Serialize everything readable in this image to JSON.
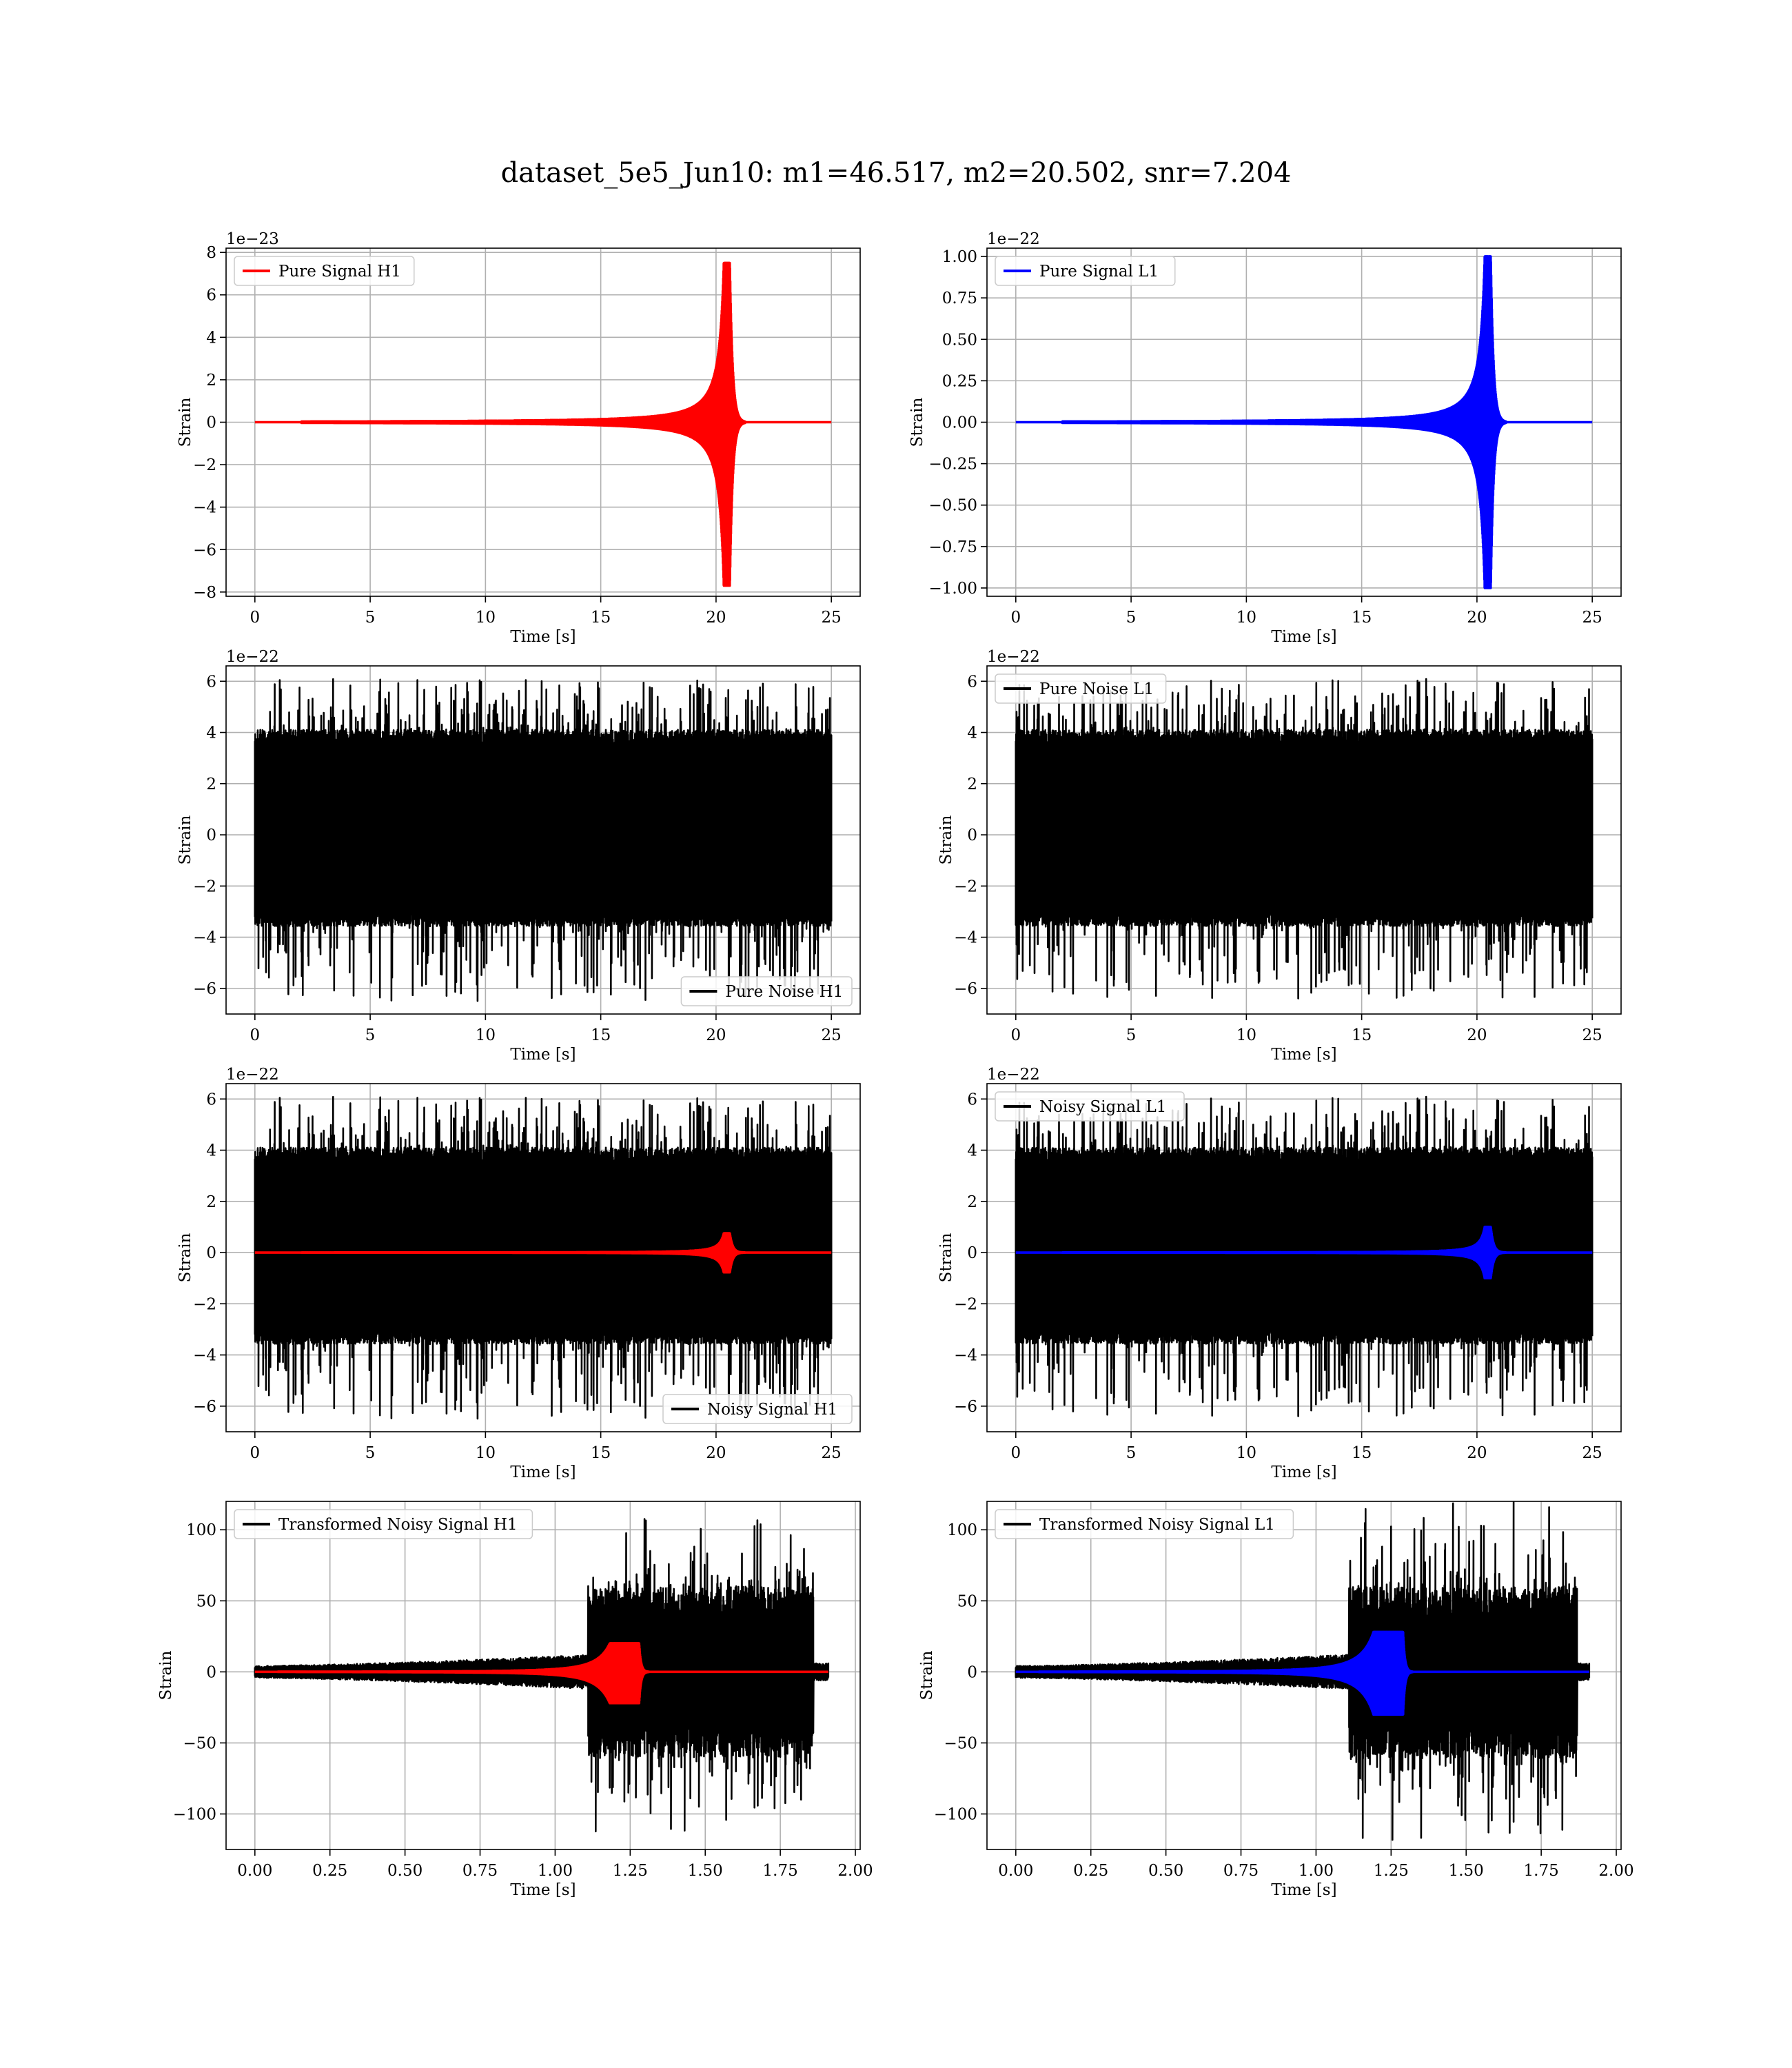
{
  "figure": {
    "title": "dataset_5e5_Jun10: m1=46.517, m2=20.502, snr=7.204"
  },
  "colors": {
    "h1_signal": "#ff0000",
    "l1_signal": "#0000ff",
    "noise": "#000000",
    "grid": "#b0b0b0"
  },
  "chart_data": [
    {
      "id": "pure_signal_h1",
      "type": "line",
      "legend": [
        "Pure Signal H1"
      ],
      "legend_colors": [
        "#ff0000"
      ],
      "legend_loc": "upper-left",
      "xlabel": "Time [s]",
      "ylabel": "Strain",
      "offset_text": "1e−23",
      "xlim": [
        -1.25,
        26.25
      ],
      "ylim": [
        -8.2,
        8.2
      ],
      "xticks": [
        0,
        5,
        10,
        15,
        20,
        25
      ],
      "xtick_labels": [
        "0",
        "5",
        "10",
        "15",
        "20",
        "25"
      ],
      "yticks": [
        -8,
        -6,
        -4,
        -2,
        0,
        2,
        4,
        6,
        8
      ],
      "ytick_labels": [
        "−8",
        "−6",
        "−4",
        "−2",
        "0",
        "2",
        "4",
        "6",
        "8"
      ],
      "grid": true,
      "series": [
        {
          "kind": "chirp",
          "color": "#ff0000",
          "t_start": 0,
          "t_end": 25,
          "t_merge": 20.6,
          "peak_pos": 7.5,
          "peak_neg": -7.7,
          "ringdown": 0.12,
          "exponent": 1.3
        }
      ]
    },
    {
      "id": "pure_signal_l1",
      "type": "line",
      "legend": [
        "Pure Signal L1"
      ],
      "legend_colors": [
        "#0000ff"
      ],
      "legend_loc": "upper-left",
      "xlabel": "Time [s]",
      "ylabel": "Strain",
      "offset_text": "1e−22",
      "xlim": [
        -1.25,
        26.25
      ],
      "ylim": [
        -1.05,
        1.05
      ],
      "xticks": [
        0,
        5,
        10,
        15,
        20,
        25
      ],
      "xtick_labels": [
        "0",
        "5",
        "10",
        "15",
        "20",
        "25"
      ],
      "yticks": [
        -1.0,
        -0.75,
        -0.5,
        -0.25,
        0,
        0.25,
        0.5,
        0.75,
        1.0
      ],
      "ytick_labels": [
        "−1.00",
        "−0.75",
        "−0.50",
        "−0.25",
        "0.00",
        "0.25",
        "0.50",
        "0.75",
        "1.00"
      ],
      "grid": true,
      "series": [
        {
          "kind": "chirp",
          "color": "#0000ff",
          "t_start": 0,
          "t_end": 25,
          "t_merge": 20.6,
          "peak_pos": 1.0,
          "peak_neg": -1.0,
          "ringdown": 0.12,
          "exponent": 1.3
        }
      ]
    },
    {
      "id": "pure_noise_h1",
      "type": "line",
      "legend": [
        "Pure Noise H1"
      ],
      "legend_colors": [
        "#000000"
      ],
      "legend_loc": "lower-right",
      "xlabel": "Time [s]",
      "ylabel": "Strain",
      "offset_text": "1e−22",
      "xlim": [
        -1.25,
        26.25
      ],
      "ylim": [
        -7.0,
        6.6
      ],
      "xticks": [
        0,
        5,
        10,
        15,
        20,
        25
      ],
      "xtick_labels": [
        "0",
        "5",
        "10",
        "15",
        "20",
        "25"
      ],
      "yticks": [
        -6,
        -4,
        -2,
        0,
        2,
        4,
        6
      ],
      "ytick_labels": [
        "−6",
        "−4",
        "−2",
        "0",
        "2",
        "4",
        "6"
      ],
      "grid": true,
      "series": [
        {
          "kind": "noise",
          "color": "#000000",
          "t_start": 0,
          "t_end": 25,
          "core_pos": 3.8,
          "core_neg": -3.3,
          "max": 6.1,
          "min": -6.5,
          "seed": 11
        }
      ]
    },
    {
      "id": "pure_noise_l1",
      "type": "line",
      "legend": [
        "Pure Noise L1"
      ],
      "legend_colors": [
        "#000000"
      ],
      "legend_loc": "upper-left",
      "xlabel": "Time [s]",
      "ylabel": "Strain",
      "offset_text": "1e−22",
      "xlim": [
        -1.25,
        26.25
      ],
      "ylim": [
        -7.0,
        6.6
      ],
      "xticks": [
        0,
        5,
        10,
        15,
        20,
        25
      ],
      "xtick_labels": [
        "0",
        "5",
        "10",
        "15",
        "20",
        "25"
      ],
      "yticks": [
        -6,
        -4,
        -2,
        0,
        2,
        4,
        6
      ],
      "ytick_labels": [
        "−6",
        "−4",
        "−2",
        "0",
        "2",
        "4",
        "6"
      ],
      "grid": true,
      "series": [
        {
          "kind": "noise",
          "color": "#000000",
          "t_start": 0,
          "t_end": 25,
          "core_pos": 3.8,
          "core_neg": -3.3,
          "max": 6.1,
          "min": -6.4,
          "seed": 29
        }
      ]
    },
    {
      "id": "noisy_signal_h1",
      "type": "line",
      "legend": [
        "Noisy Signal H1"
      ],
      "legend_colors": [
        "#000000"
      ],
      "legend_loc": "lower-right",
      "xlabel": "Time [s]",
      "ylabel": "Strain",
      "offset_text": "1e−22",
      "xlim": [
        -1.25,
        26.25
      ],
      "ylim": [
        -7.0,
        6.6
      ],
      "xticks": [
        0,
        5,
        10,
        15,
        20,
        25
      ],
      "xtick_labels": [
        "0",
        "5",
        "10",
        "15",
        "20",
        "25"
      ],
      "yticks": [
        -6,
        -4,
        -2,
        0,
        2,
        4,
        6
      ],
      "ytick_labels": [
        "−6",
        "−4",
        "−2",
        "0",
        "2",
        "4",
        "6"
      ],
      "grid": true,
      "series": [
        {
          "kind": "noise",
          "color": "#000000",
          "t_start": 0,
          "t_end": 25,
          "core_pos": 3.8,
          "core_neg": -3.3,
          "max": 6.1,
          "min": -6.5,
          "seed": 11
        },
        {
          "kind": "chirp",
          "color": "#ff0000",
          "t_start": 0,
          "t_end": 25,
          "t_merge": 20.6,
          "peak_pos": 0.75,
          "peak_neg": -0.77,
          "ringdown": 0.12,
          "exponent": 1.3
        }
      ]
    },
    {
      "id": "noisy_signal_l1",
      "type": "line",
      "legend": [
        "Noisy Signal L1"
      ],
      "legend_colors": [
        "#000000"
      ],
      "legend_loc": "upper-left",
      "xlabel": "Time [s]",
      "ylabel": "Strain",
      "offset_text": "1e−22",
      "xlim": [
        -1.25,
        26.25
      ],
      "ylim": [
        -7.0,
        6.6
      ],
      "xticks": [
        0,
        5,
        10,
        15,
        20,
        25
      ],
      "xtick_labels": [
        "0",
        "5",
        "10",
        "15",
        "20",
        "25"
      ],
      "yticks": [
        -6,
        -4,
        -2,
        0,
        2,
        4,
        6
      ],
      "ytick_labels": [
        "−6",
        "−4",
        "−2",
        "0",
        "2",
        "4",
        "6"
      ],
      "grid": true,
      "series": [
        {
          "kind": "noise",
          "color": "#000000",
          "t_start": 0,
          "t_end": 25,
          "core_pos": 3.8,
          "core_neg": -3.3,
          "max": 6.1,
          "min": -6.4,
          "seed": 29
        },
        {
          "kind": "chirp",
          "color": "#0000ff",
          "t_start": 0,
          "t_end": 25,
          "t_merge": 20.6,
          "peak_pos": 1.0,
          "peak_neg": -1.0,
          "ringdown": 0.12,
          "exponent": 1.3
        }
      ]
    },
    {
      "id": "transformed_noisy_signal_h1",
      "type": "line",
      "legend": [
        "Transformed Noisy Signal H1"
      ],
      "legend_colors": [
        "#000000"
      ],
      "legend_loc": "upper-left",
      "xlabel": "Time [s]",
      "ylabel": "Strain",
      "offset_text": "",
      "xlim": [
        -0.096,
        2.016
      ],
      "ylim": [
        -125,
        120
      ],
      "xticks": [
        0,
        0.25,
        0.5,
        0.75,
        1.0,
        1.25,
        1.5,
        1.75,
        2.0
      ],
      "xtick_labels": [
        "0.00",
        "0.25",
        "0.50",
        "0.75",
        "1.00",
        "1.25",
        "1.50",
        "1.75",
        "2.00"
      ],
      "yticks": [
        -100,
        -50,
        0,
        50,
        100
      ],
      "ytick_labels": [
        "−100",
        "−50",
        "0",
        "50",
        "100"
      ],
      "grid": true,
      "series": [
        {
          "kind": "whitened",
          "color": "#000000",
          "t_start": 0,
          "t_end": 1.91,
          "t_step": 1.11,
          "t_drop": 1.86,
          "low_amp": 12,
          "high_amp": 60,
          "max": 108,
          "min": -114,
          "seed": 53
        },
        {
          "kind": "chirp",
          "color": "#ff0000",
          "t_start": 0,
          "t_end": 1.91,
          "t_merge": 1.28,
          "peak_pos": 20,
          "peak_neg": -22,
          "ringdown": 0.006,
          "exponent": 2.2
        }
      ]
    },
    {
      "id": "transformed_noisy_signal_l1",
      "type": "line",
      "legend": [
        "Transformed Noisy Signal L1"
      ],
      "legend_colors": [
        "#000000"
      ],
      "legend_loc": "upper-left",
      "xlabel": "Time [s]",
      "ylabel": "Strain",
      "offset_text": "",
      "xlim": [
        -0.096,
        2.016
      ],
      "ylim": [
        -125,
        120
      ],
      "xticks": [
        0,
        0.25,
        0.5,
        0.75,
        1.0,
        1.25,
        1.5,
        1.75,
        2.0
      ],
      "xtick_labels": [
        "0.00",
        "0.25",
        "0.50",
        "0.75",
        "1.00",
        "1.25",
        "1.50",
        "1.75",
        "2.00"
      ],
      "yticks": [
        -100,
        -50,
        0,
        50,
        100
      ],
      "ytick_labels": [
        "−100",
        "−50",
        "0",
        "50",
        "100"
      ],
      "grid": true,
      "series": [
        {
          "kind": "whitened",
          "color": "#000000",
          "t_start": 0,
          "t_end": 1.91,
          "t_step": 1.11,
          "t_drop": 1.87,
          "low_amp": 12,
          "high_amp": 60,
          "max": 120,
          "min": -121,
          "seed": 71
        },
        {
          "kind": "chirp",
          "color": "#0000ff",
          "t_start": 0,
          "t_end": 1.91,
          "t_merge": 1.29,
          "peak_pos": 28,
          "peak_neg": -30,
          "ringdown": 0.006,
          "exponent": 2.2
        }
      ]
    }
  ]
}
